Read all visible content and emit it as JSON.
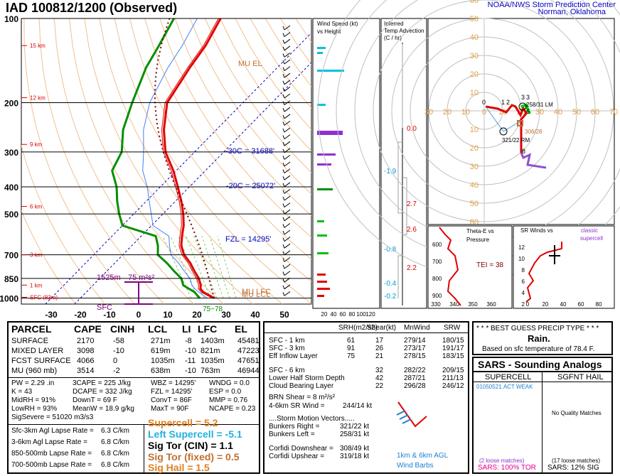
{
  "header": {
    "title": "IAD   100812/1200  (Observed)",
    "org_line1": "NOAA/NWS Storm Prediction Center",
    "org_line2": "Norman, Oklahoma"
  },
  "colors": {
    "temp": "#e00000",
    "dew": "#009000",
    "wetbulb": "#4080ff",
    "parcel": "#800000",
    "cyan": "#00c0e0",
    "purple": "#9030d0",
    "blue": "#0000c0",
    "orange": "#c07030",
    "lapse": "#20c0e0"
  },
  "chart_data": [
    {
      "type": "line",
      "title": "Skew-T log-P sounding",
      "xlabel": "",
      "ylabel": "",
      "y_ticks": [
        100,
        200,
        300,
        400,
        500,
        700,
        850,
        1000
      ],
      "x_ticks": [
        -30,
        -20,
        -10,
        0,
        10,
        20,
        30,
        40,
        50
      ],
      "ylim": [
        1050,
        100
      ],
      "height_labels": [
        "15 km",
        "12 km",
        "9 km",
        "6 km",
        "3 km",
        "1 km",
        "SFC (83m)"
      ],
      "annotations": [
        "MU EL",
        "-30C = 31688'",
        "-20C = 25072'",
        "FZL = 14295'",
        "1525m",
        "75 m²s²",
        "SFC",
        "MU LFC",
        "MU LCL",
        "75~78"
      ],
      "series": [
        {
          "name": "Temperature",
          "values": [
            [
              1000,
              26
            ],
            [
              975,
              23
            ],
            [
              950,
              20
            ],
            [
              925,
              18
            ],
            [
              900,
              17
            ],
            [
              850,
              14
            ],
            [
              800,
              10
            ],
            [
              750,
              6
            ],
            [
              700,
              1
            ],
            [
              650,
              -3
            ],
            [
              600,
              -6
            ],
            [
              550,
              -9
            ],
            [
              500,
              -13
            ],
            [
              450,
              -18
            ],
            [
              400,
              -24
            ],
            [
              350,
              -31
            ],
            [
              300,
              -40
            ],
            [
              250,
              -48
            ],
            [
              200,
              -56
            ],
            [
              150,
              -60
            ],
            [
              125,
              -62
            ],
            [
              100,
              -66
            ]
          ]
        },
        {
          "name": "Dewpoint",
          "values": [
            [
              1000,
              21
            ],
            [
              975,
              19
            ],
            [
              950,
              17
            ],
            [
              925,
              14
            ],
            [
              900,
              11
            ],
            [
              850,
              8
            ],
            [
              800,
              3
            ],
            [
              750,
              -2
            ],
            [
              700,
              -8
            ],
            [
              650,
              -11
            ],
            [
              600,
              -15
            ],
            [
              550,
              -30
            ],
            [
              500,
              -35
            ],
            [
              450,
              -40
            ],
            [
              400,
              -45
            ],
            [
              350,
              -52
            ],
            [
              300,
              -55
            ],
            [
              250,
              -62
            ],
            [
              200,
              -68
            ],
            [
              150,
              -75
            ],
            [
              125,
              -78
            ],
            [
              100,
              -82
            ]
          ]
        }
      ]
    },
    {
      "type": "bar",
      "title": "Wind Speed (kt) vs Height",
      "x_ticks": [
        20,
        40,
        60,
        80,
        100,
        120
      ]
    },
    {
      "type": "bar",
      "title": "Inferred Temp Advection (C / hr)",
      "annotations": [
        "0.0",
        "-1.9",
        "2.7",
        "2.6",
        "-0.8",
        "2.2",
        "-0.4",
        "-0.2"
      ]
    },
    {
      "type": "line",
      "title": "Hodograph",
      "tick_labels": [
        "60",
        "50",
        "40",
        "30",
        "20",
        "10",
        "0",
        "10",
        "20",
        "30",
        "40",
        "50",
        "60",
        "70",
        "80",
        "90",
        "30",
        "20",
        "10",
        "10",
        "20",
        "30",
        "40",
        "50",
        "60",
        "70",
        "80"
      ],
      "annotations": [
        "258/31 LM",
        "321/22 RM",
        "306/28",
        "1",
        "2",
        "3",
        "3",
        "6",
        "8",
        "0"
      ]
    },
    {
      "type": "line",
      "title": "Theta-E vs Pressure",
      "y_ticks": [
        600,
        700,
        800,
        900
      ],
      "x_ticks": [
        330,
        340,
        350,
        360
      ],
      "annotations": [
        "TEI = 38"
      ]
    },
    {
      "type": "line",
      "title": "SR Winds vs Height",
      "y_ticks": [
        12,
        10,
        8,
        6,
        4,
        2
      ],
      "x_ticks": [
        0,
        20,
        40,
        60,
        80
      ],
      "legend": "classic supercell"
    }
  ],
  "parcel": {
    "headers": [
      "PARCEL",
      "CAPE",
      "CINH",
      "LCL",
      "LI",
      "LFC",
      "EL"
    ],
    "rows": [
      [
        "SURFACE",
        "2170",
        "-58",
        "271m",
        "-8",
        "1403m",
        "45481'"
      ],
      [
        "MIXED LAYER",
        "3098",
        "-10",
        "619m",
        "-10",
        "821m",
        "47223'"
      ],
      [
        "FCST SURFACE",
        "4066",
        "0",
        "1035m",
        "-11",
        "1035m",
        "47651'"
      ],
      [
        "MU   (960 mb)",
        "3514",
        "-2",
        "638m",
        "-10",
        "763m",
        "46944'"
      ]
    ],
    "indices": [
      [
        "PW = 2.29 .in",
        "3CAPE = 225 J/kg",
        "WBZ = 14295'",
        "WNDG = 0.0"
      ],
      [
        "K = 43",
        "DCAPE = 332 J/kg",
        "FZL = 14295'",
        "ESP = 0.0"
      ],
      [
        "MidRH = 91%",
        "DownT = 69 F",
        "ConvT = 86F",
        "MMP = 0.76"
      ],
      [
        "LowRH = 93%",
        "MeanW = 18.9 g/kg",
        "MaxT = 90F",
        "NCAPE = 0.23"
      ],
      [
        "SigSevere = 51020 m3/s3",
        "",
        "",
        ""
      ]
    ],
    "lapse": [
      [
        "Sfc-3km Agl Lapse Rate =",
        "6.3 C/km"
      ],
      [
        "3-6km Agl Lapse Rate =",
        "6.8 C/km"
      ],
      [
        "850-500mb Lapse Rate =",
        "6.8 C/km"
      ],
      [
        "700-500mb Lapse Rate =",
        "6.8 C/km"
      ]
    ],
    "params": {
      "supercell": "Supercell = 5.2",
      "left_supercell": "Left Supercell = -5.1",
      "sig_tor_cin": "Sig Tor (CIN) = 1.1",
      "sig_tor_fixed": "Sig Tor (fixed) = 0.5",
      "sig_hail": "Sig Hail = 1.5"
    }
  },
  "kinematics": {
    "headers": [
      "SRH(m2/s2)",
      "Shear(kt)",
      "MnWind",
      "SRW"
    ],
    "rows1": [
      [
        "SFC - 1 km",
        "61",
        "17",
        "279/14",
        "180/15"
      ],
      [
        "SFC - 3 km",
        "91",
        "26",
        "273/17",
        "191/17"
      ],
      [
        "Eff Inflow Layer",
        "75",
        "21",
        "278/15",
        "183/15"
      ]
    ],
    "rows2": [
      [
        "SFC - 6 km",
        "",
        "32",
        "282/22",
        "209/15"
      ],
      [
        "Lower Half Storm Depth",
        "42",
        "287/21",
        "211/13",
        ""
      ],
      [
        "Cloud Bearing Layer",
        "22",
        "296/28",
        "246/12",
        ""
      ]
    ],
    "brn": "BRN Shear =  8 m²/s²",
    "sr_wind": "4-6km SR Wind =",
    "sr_wind_val": "244/14 kt",
    "motion_title": "....Storm Motion Vectors.....",
    "motions": [
      [
        "Bunkers Right =",
        "321/22 kt"
      ],
      [
        "Bunkers Left =",
        "258/31 kt"
      ],
      [
        "Corfidi Downshear =",
        "308/49 kt"
      ],
      [
        "Corfidi Upshear =",
        "319/18 kt"
      ]
    ],
    "barb_caption1": "1km & 6km AGL",
    "barb_caption2": "Wind Barbs"
  },
  "precip": {
    "title": "* * * BEST GUESS PRECIP TYPE * * *",
    "value": "Rain.",
    "basis": "Based on sfc temperature of 78.4 F."
  },
  "sars": {
    "title": "SARS - Sounding Analogs",
    "col1": "SUPERCELL",
    "col2": "SGFNT HAIL",
    "match1": "01050521.ACT   WEAK",
    "match2": "No Quality Matches",
    "loose1": "(2 loose matches)",
    "loose2": "(17 loose matches)",
    "tor": "SARS:  100% TOR",
    "sig": "SARS:  12% SIG"
  }
}
